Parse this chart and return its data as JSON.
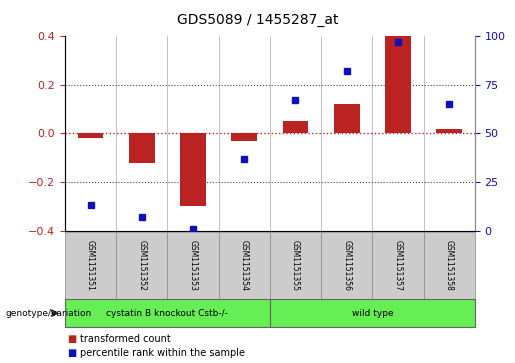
{
  "title": "GDS5089 / 1455287_at",
  "samples": [
    "GSM1151351",
    "GSM1151352",
    "GSM1151353",
    "GSM1151354",
    "GSM1151355",
    "GSM1151356",
    "GSM1151357",
    "GSM1151358"
  ],
  "transformed_count": [
    -0.02,
    -0.12,
    -0.3,
    -0.03,
    0.05,
    0.12,
    0.4,
    0.02
  ],
  "percentile_rank": [
    13,
    7,
    1,
    37,
    67,
    82,
    97,
    65
  ],
  "ylim_left": [
    -0.4,
    0.4
  ],
  "ylim_right": [
    0,
    100
  ],
  "yticks_left": [
    -0.4,
    -0.2,
    0.0,
    0.2,
    0.4
  ],
  "yticks_right": [
    0,
    25,
    50,
    75,
    100
  ],
  "group_boundary": 4,
  "bar_color": "#bb2222",
  "dot_color": "#1111bb",
  "bar_width": 0.5,
  "dot_size": 5,
  "hline_color": "#cc2222",
  "grid_color": "#444444",
  "legend_items": [
    {
      "label": "transformed count",
      "color": "#bb2222"
    },
    {
      "label": "percentile rank within the sample",
      "color": "#1111bb"
    }
  ],
  "group1_label": "cystatin B knockout Cstb-/-",
  "group2_label": "wild type",
  "group_color": "#66ee55",
  "sample_box_color": "#cccccc",
  "figsize": [
    5.15,
    3.63
  ],
  "dpi": 100
}
